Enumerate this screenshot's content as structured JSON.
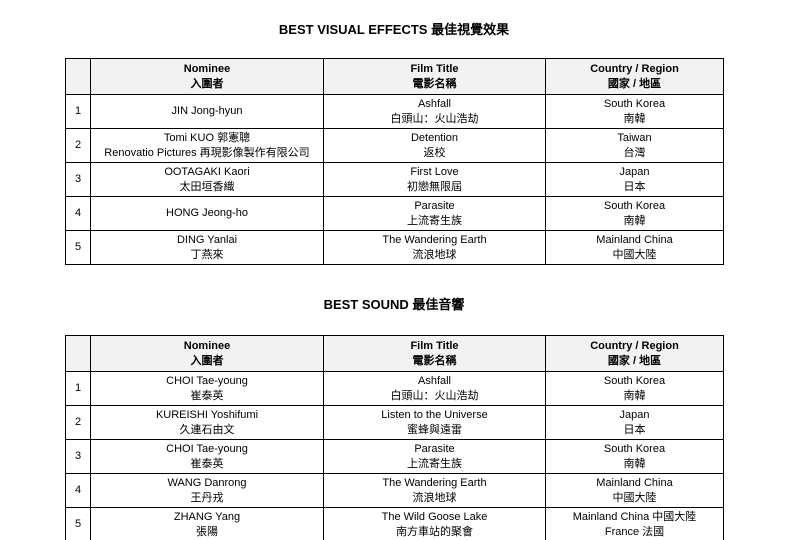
{
  "colors": {
    "border": "#000000",
    "header_background": "#f2f2f2",
    "text": "#000000",
    "page_background": "#ffffff"
  },
  "sections": [
    {
      "title": "BEST VISUAL EFFECTS 最佳視覺效果",
      "headers": {
        "num": "",
        "nominee": "Nominee\n入圍者",
        "film": "Film Title\n電影名稱",
        "country": "Country / Region\n國家 / 地區"
      },
      "rows": [
        {
          "num": "1",
          "nominee": "JIN Jong-hyun",
          "film": "Ashfall\n白頭山：火山浩劫",
          "country": "South Korea\n南韓"
        },
        {
          "num": "2",
          "nominee": "Tomi KUO 郭憲聰\nRenovatio Pictures 再現影像製作有限公司",
          "film": "Detention\n返校",
          "country": "Taiwan\n台灣"
        },
        {
          "num": "3",
          "nominee": "OOTAGAKI Kaori\n太田垣香織",
          "film": "First Love\n初戀無限屆",
          "country": "Japan\n日本"
        },
        {
          "num": "4",
          "nominee": "HONG Jeong-ho",
          "film": "Parasite\n上流寄生族",
          "country": "South Korea\n南韓"
        },
        {
          "num": "5",
          "nominee": "DING Yanlai\n丁燕來",
          "film": "The Wandering Earth\n流浪地球",
          "country": "Mainland China\n中國大陸"
        }
      ]
    },
    {
      "title": "BEST SOUND 最佳音響",
      "headers": {
        "num": "",
        "nominee": "Nominee\n入圍者",
        "film": "Film Title\n電影名稱",
        "country": "Country / Region\n國家 / 地區"
      },
      "rows": [
        {
          "num": "1",
          "nominee": "CHOI Tae-young\n崔泰英",
          "film": "Ashfall\n白頭山：火山浩劫",
          "country": "South Korea\n南韓"
        },
        {
          "num": "2",
          "nominee": "KUREISHI Yoshifumi\n久連石由文",
          "film": "Listen to the Universe\n蜜蜂與遠雷",
          "country": "Japan\n日本"
        },
        {
          "num": "3",
          "nominee": "CHOI Tae-young\n崔泰英",
          "film": "Parasite\n上流寄生族",
          "country": "South Korea\n南韓"
        },
        {
          "num": "4",
          "nominee": "WANG Danrong\n王丹戎",
          "film": "The Wandering Earth\n流浪地球",
          "country": "Mainland China\n中國大陸"
        },
        {
          "num": "5",
          "nominee": "ZHANG Yang\n張陽",
          "film": "The Wild Goose Lake\n南方車站的聚會",
          "country": "Mainland China 中國大陸\nFrance 法國"
        }
      ]
    }
  ]
}
